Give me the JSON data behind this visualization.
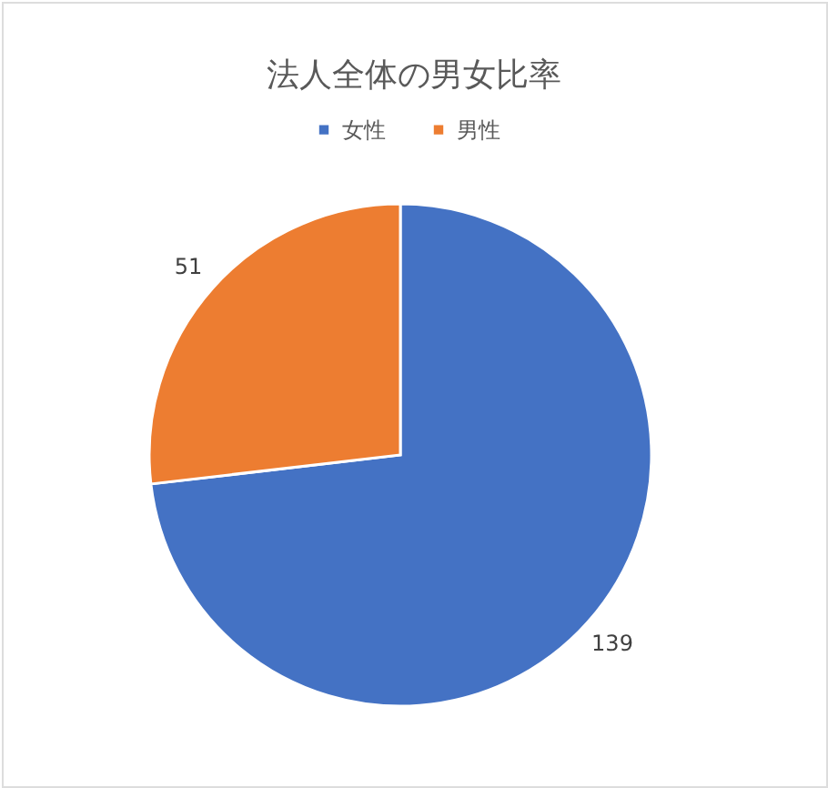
{
  "chart_data": {
    "type": "pie",
    "title": "法人全体の男女比率",
    "categories": [
      "女性",
      "男性"
    ],
    "values": [
      139,
      51
    ],
    "colors": [
      "#4472c4",
      "#ed7d31"
    ],
    "data_labels": true,
    "legend": "top"
  }
}
